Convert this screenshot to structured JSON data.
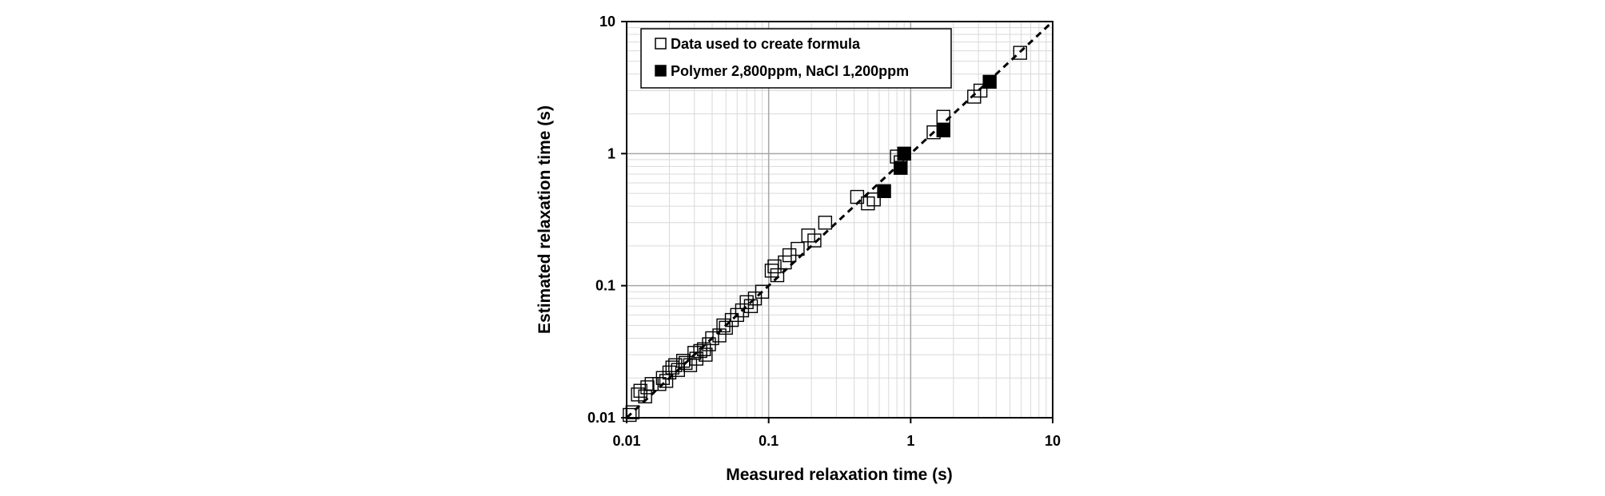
{
  "chart_data": {
    "type": "scatter",
    "title": "",
    "xlabel": "Measured relaxation time (s)",
    "ylabel": "Estimated relaxation time (s)",
    "xscale": "log",
    "yscale": "log",
    "xlim": [
      0.01,
      10
    ],
    "ylim": [
      0.01,
      10
    ],
    "x_ticks": [
      "0.01",
      "0.1",
      "1",
      "10"
    ],
    "y_ticks": [
      "0.01",
      "0.1",
      "1",
      "10"
    ],
    "grid": true,
    "legend_position": "top-left",
    "reference_line": {
      "style": "dashed",
      "x": [
        0.01,
        10
      ],
      "y": [
        0.01,
        10
      ]
    },
    "series": [
      {
        "name": "Data used to create formula",
        "marker": "open-square",
        "x": [
          0.0105,
          0.011,
          0.012,
          0.0125,
          0.0135,
          0.014,
          0.015,
          0.017,
          0.018,
          0.019,
          0.02,
          0.021,
          0.022,
          0.023,
          0.025,
          0.026,
          0.028,
          0.03,
          0.031,
          0.033,
          0.035,
          0.036,
          0.038,
          0.04,
          0.045,
          0.048,
          0.05,
          0.055,
          0.06,
          0.065,
          0.07,
          0.075,
          0.08,
          0.09,
          0.105,
          0.11,
          0.115,
          0.13,
          0.14,
          0.16,
          0.19,
          0.21,
          0.25,
          0.42,
          0.5,
          0.55,
          0.8,
          0.85,
          1.45,
          1.7,
          2.8,
          3.1,
          5.9
        ],
        "y": [
          0.0105,
          0.011,
          0.015,
          0.016,
          0.0145,
          0.017,
          0.018,
          0.018,
          0.02,
          0.019,
          0.022,
          0.024,
          0.025,
          0.023,
          0.027,
          0.026,
          0.025,
          0.031,
          0.028,
          0.032,
          0.033,
          0.03,
          0.036,
          0.04,
          0.042,
          0.05,
          0.048,
          0.055,
          0.06,
          0.065,
          0.075,
          0.07,
          0.08,
          0.09,
          0.13,
          0.14,
          0.12,
          0.15,
          0.17,
          0.19,
          0.24,
          0.22,
          0.3,
          0.47,
          0.42,
          0.45,
          0.95,
          0.86,
          1.45,
          1.9,
          2.7,
          3.0,
          5.8
        ]
      },
      {
        "name": "Polymer 2,800ppm, NaCl 1,200ppm",
        "marker": "filled-square",
        "x": [
          0.65,
          0.85,
          0.9,
          1.7,
          3.6
        ],
        "y": [
          0.52,
          0.78,
          1.0,
          1.5,
          3.5
        ]
      }
    ]
  }
}
